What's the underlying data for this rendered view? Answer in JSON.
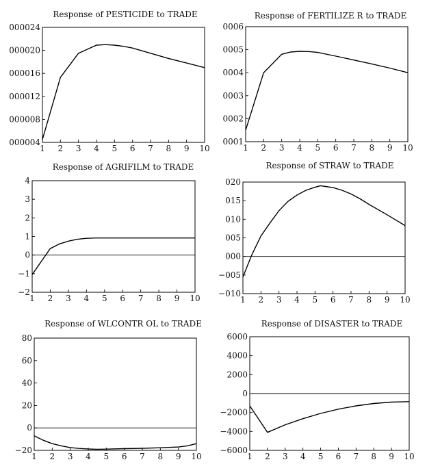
{
  "chart_data": [
    {
      "type": "line",
      "title": "Response of PESTICIDE to TRADE",
      "x": [
        1,
        2,
        3,
        4,
        4.5,
        5,
        5.5,
        6,
        7,
        8,
        9,
        10
      ],
      "y": [
        4.5,
        15.3,
        19.5,
        20.9,
        21.0,
        20.9,
        20.7,
        20.4,
        19.5,
        18.6,
        17.8,
        17.0
      ],
      "xlim": [
        1,
        10
      ],
      "ylim": [
        4,
        24
      ],
      "xticks": [
        "1",
        "2",
        "3",
        "4",
        "5",
        "6",
        "7",
        "8",
        "9",
        "10"
      ],
      "yticks": [
        {
          "v": 24,
          "label": "000024"
        },
        {
          "v": 20,
          "label": "000020"
        },
        {
          "v": 16,
          "label": "000016"
        },
        {
          "v": 12,
          "label": "000012"
        },
        {
          "v": 8,
          "label": "000008"
        },
        {
          "v": 4,
          "label": "000004"
        }
      ],
      "zeroline": null
    },
    {
      "type": "line",
      "title": "Response of FERTILIZE R to TRADE",
      "x": [
        1,
        2,
        3,
        3.5,
        4,
        4.5,
        5,
        6,
        7,
        8,
        9,
        10
      ],
      "y": [
        1.5,
        4.0,
        4.8,
        4.9,
        4.93,
        4.92,
        4.88,
        4.72,
        4.55,
        4.38,
        4.2,
        4.0
      ],
      "xlim": [
        1,
        10
      ],
      "ylim": [
        1,
        6
      ],
      "xticks": [
        "1",
        "2",
        "3",
        "4",
        "5",
        "6",
        "7",
        "8",
        "9",
        "10"
      ],
      "yticks": [
        {
          "v": 6,
          "label": "0006"
        },
        {
          "v": 5,
          "label": "0005"
        },
        {
          "v": 4,
          "label": "0004"
        },
        {
          "v": 3,
          "label": "0003"
        },
        {
          "v": 2,
          "label": "0002"
        },
        {
          "v": 1,
          "label": "0001"
        }
      ],
      "zeroline": null
    },
    {
      "type": "line",
      "title": "Response of AGRIFILM to TRADE",
      "x": [
        1,
        2,
        2.5,
        3,
        3.5,
        4,
        4.5,
        5,
        6,
        7,
        8,
        9,
        10
      ],
      "y": [
        -1.05,
        0.35,
        0.6,
        0.75,
        0.85,
        0.9,
        0.92,
        0.92,
        0.92,
        0.92,
        0.92,
        0.92,
        0.92
      ],
      "xlim": [
        1,
        10
      ],
      "ylim": [
        -2,
        4
      ],
      "xticks": [
        "1",
        "2",
        "3",
        "4",
        "5",
        "6",
        "7",
        "8",
        "9",
        "10"
      ],
      "yticks": [
        {
          "v": 4,
          "label": "4"
        },
        {
          "v": 3,
          "label": "3"
        },
        {
          "v": 2,
          "label": "2"
        },
        {
          "v": 1,
          "label": "1"
        },
        {
          "v": 0,
          "label": "0"
        },
        {
          "v": -1,
          "label": "−1"
        },
        {
          "v": -2,
          "label": "−2"
        }
      ],
      "zeroline": 0
    },
    {
      "type": "line",
      "title": "Response of STRAW to TRADE",
      "x": [
        1,
        1.5,
        2,
        2.5,
        3,
        3.5,
        4,
        4.5,
        5,
        5.3,
        6,
        6.5,
        7,
        7.5,
        8,
        9,
        10
      ],
      "y": [
        -5.5,
        0.5,
        5.5,
        9.0,
        12.3,
        14.8,
        16.5,
        17.8,
        18.6,
        19.0,
        18.5,
        17.8,
        16.8,
        15.5,
        14.0,
        11.2,
        8.3
      ],
      "xlim": [
        1,
        10
      ],
      "ylim": [
        -10,
        20
      ],
      "xticks": [
        "1",
        "2",
        "3",
        "4",
        "5",
        "6",
        "7",
        "8",
        "9",
        "10"
      ],
      "yticks": [
        {
          "v": 20,
          "label": "020"
        },
        {
          "v": 15,
          "label": "015"
        },
        {
          "v": 10,
          "label": "010"
        },
        {
          "v": 5,
          "label": "005"
        },
        {
          "v": 0,
          "label": "000"
        },
        {
          "v": -5,
          "label": "−005"
        },
        {
          "v": -10,
          "label": "−010"
        }
      ],
      "zeroline": 0
    },
    {
      "type": "line",
      "title": "Response of WLCONTR OL to TRADE",
      "x": [
        1,
        1.5,
        2,
        2.5,
        3,
        3.5,
        4,
        4.5,
        5,
        6,
        7,
        8,
        9,
        9.5,
        10
      ],
      "y": [
        -7,
        -11,
        -14,
        -16,
        -17.5,
        -18.3,
        -18.8,
        -19,
        -18.9,
        -18.5,
        -18.2,
        -17.7,
        -17,
        -16,
        -14
      ],
      "xlim": [
        1,
        10
      ],
      "ylim": [
        -20,
        80
      ],
      "xticks": [
        "1",
        "2",
        "3",
        "4",
        "5",
        "6",
        "7",
        "8",
        "9",
        "10"
      ],
      "yticks": [
        {
          "v": 80,
          "label": "80"
        },
        {
          "v": 60,
          "label": "60"
        },
        {
          "v": 40,
          "label": "40"
        },
        {
          "v": 20,
          "label": "20"
        },
        {
          "v": 0,
          "label": "0"
        },
        {
          "v": -20,
          "label": "−20"
        }
      ],
      "zeroline": 0
    },
    {
      "type": "line",
      "title": "Response of DISASTER to TRADE",
      "x": [
        1,
        2,
        3,
        4,
        5,
        6,
        7,
        8,
        9,
        10
      ],
      "y": [
        -1300,
        -4100,
        -3300,
        -2650,
        -2100,
        -1650,
        -1300,
        -1050,
        -900,
        -850
      ],
      "xlim": [
        1,
        10
      ],
      "ylim": [
        -6000,
        6000
      ],
      "xticks": [
        "1",
        "2",
        "3",
        "4",
        "5",
        "6",
        "7",
        "8",
        "9",
        "10"
      ],
      "yticks": [
        {
          "v": 6000,
          "label": "6000"
        },
        {
          "v": 4000,
          "label": "4000"
        },
        {
          "v": 2000,
          "label": "2000"
        },
        {
          "v": 0,
          "label": "0"
        },
        {
          "v": -2000,
          "label": "−2000"
        },
        {
          "v": -4000,
          "label": "−4000"
        },
        {
          "v": -6000,
          "label": "−6000"
        }
      ],
      "zeroline": 0
    }
  ]
}
